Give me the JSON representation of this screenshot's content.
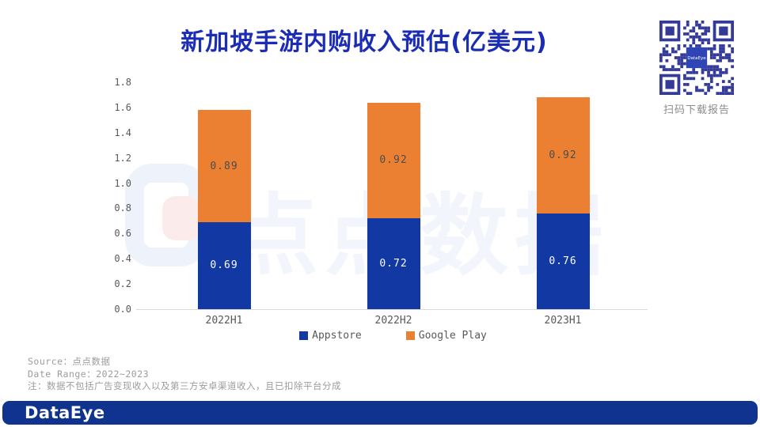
{
  "title": "新加坡手游内购收入预估(亿美元)",
  "qr": {
    "label": "扫码下载报告",
    "center_text": "DataEye",
    "module_color": "#333A99",
    "center_color": "#2F45B5"
  },
  "watermark": {
    "text": "点点数据"
  },
  "chart_data": {
    "type": "bar",
    "stacked": true,
    "categories": [
      "2022H1",
      "2022H2",
      "2023H1"
    ],
    "series": [
      {
        "name": "Appstore",
        "color": "#1238A3",
        "label_color": "#FFFFFF",
        "values": [
          0.69,
          0.72,
          0.76
        ]
      },
      {
        "name": "Google Play",
        "color": "#EC8032",
        "label_color": "#4D4D4D",
        "values": [
          0.89,
          0.92,
          0.92
        ]
      }
    ],
    "totals": [
      1.58,
      1.64,
      1.68
    ],
    "ylim": [
      0,
      1.8
    ],
    "ytick_step": 0.2,
    "legend_position": "bottom",
    "grid": false,
    "axis_line_color": "#D9D9D9"
  },
  "footnotes": [
    "Source：点点数据",
    "Date Range：2022~2023",
    "注：数据不包括广告变现收入以及第三方安卓渠道收入，且已扣除平台分成"
  ],
  "footer": {
    "logo": "DataEye"
  }
}
